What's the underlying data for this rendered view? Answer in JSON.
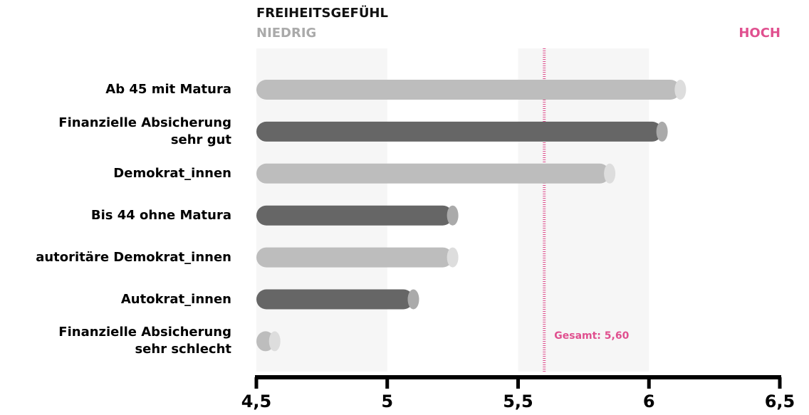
{
  "chart_data": {
    "type": "bar",
    "orientation": "horizontal",
    "title": "FREIHEITSGEFÜHL",
    "axis_low_label": "NIEDRIG",
    "axis_high_label": "HOCH",
    "categories": [
      "Ab 45 mit Matura",
      "Finanzielle Absicherung\nsehr gut",
      "Demokrat_innen",
      "Bis 44 ohne Matura",
      "autoritäre Demokrat_innen",
      "Autokrat_innen",
      "Finanzielle Absicherung\nsehr schlecht"
    ],
    "values": [
      6.12,
      6.05,
      5.85,
      5.25,
      5.25,
      5.1,
      4.57
    ],
    "colors": [
      "#bdbdbd",
      "#666666",
      "#bdbdbd",
      "#666666",
      "#bdbdbd",
      "#666666",
      "#bdbdbd"
    ],
    "xlim": [
      4.5,
      6.5
    ],
    "xticks": [
      {
        "value": 4.5,
        "label": "4,5"
      },
      5,
      {
        "value": 5.5,
        "label": "5,5"
      },
      6,
      {
        "value": 6.5,
        "label": "6,5"
      }
    ],
    "reference": {
      "value": 5.6,
      "label": "Gesamt: 5,60",
      "color": "#e0508f"
    }
  }
}
